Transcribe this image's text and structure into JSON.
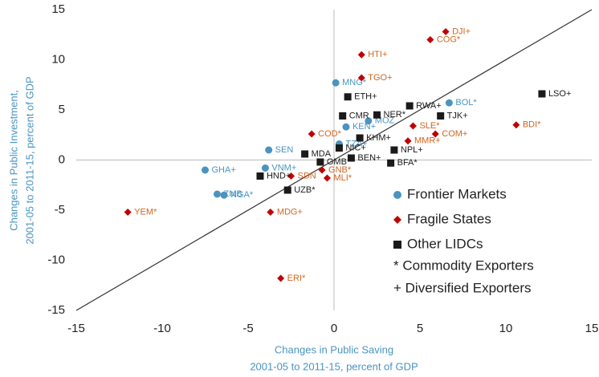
{
  "chart_data": {
    "type": "scatter",
    "xlabel": [
      "Changes in Public Saving",
      "2001-05 to 2011-15, percent of GDP"
    ],
    "ylabel": [
      "Changes in Public Investment,",
      "2001-05 to 2011-15, percent of GDP"
    ],
    "xlim": [
      -15,
      15
    ],
    "ylim": [
      -15,
      15
    ],
    "xticks": [
      -15,
      -10,
      -5,
      0,
      5,
      10,
      15
    ],
    "yticks": [
      -15,
      -10,
      -5,
      0,
      5,
      10,
      15
    ],
    "diagonal": true,
    "legend_notes": [
      "*  Commodity Exporters",
      "+  Diversified Exporters"
    ],
    "series": [
      {
        "name": "Frontier Markets",
        "marker": "circle",
        "color": "#4a94bf",
        "label_color": "#4a94bf",
        "labels": [
          "MNG*",
          "BOL*",
          "GHA+",
          "SEN",
          "VNM+",
          "ZMB",
          "NGA*",
          "MOZ",
          "KEN+",
          "TZA+"
        ],
        "x": [
          0.1,
          6.7,
          -7.5,
          -3.8,
          -4.0,
          -6.8,
          -6.4,
          2.0,
          0.7,
          0.3
        ],
        "y": [
          7.7,
          5.7,
          -1.0,
          1.0,
          -0.8,
          -3.4,
          -3.5,
          3.9,
          3.3,
          1.6
        ]
      },
      {
        "name": "Fragile States",
        "marker": "diamond",
        "color": "#c00000",
        "label_color": "#d0661e",
        "labels": [
          "DJI+",
          "COG*",
          "HTI+",
          "TGO+",
          "SLE*",
          "COM+",
          "MMR+",
          "BDI*",
          "COD*",
          "SDN",
          "MLI*",
          "GNB*",
          "YEM*",
          "MDG+",
          "ERI*"
        ],
        "x": [
          6.5,
          5.6,
          1.6,
          1.6,
          4.6,
          5.9,
          4.3,
          10.6,
          -1.3,
          -2.5,
          -0.4,
          -0.7,
          -12.0,
          -3.7,
          -3.1
        ],
        "y": [
          12.8,
          12.0,
          10.5,
          8.2,
          3.4,
          2.6,
          1.9,
          3.5,
          2.6,
          -1.6,
          -1.8,
          -1.0,
          -5.2,
          -5.2,
          -11.8
        ]
      },
      {
        "name": "Other LIDCs",
        "marker": "square",
        "color": "#1a1a1a",
        "label_color": "#1a1a1a",
        "labels": [
          "LSO+",
          "ETH+",
          "RWA+",
          "TJK+",
          "CMR",
          "NER*",
          "KHM+",
          "NIC+",
          "NPL+",
          "MDA",
          "GMB",
          "BEN+",
          "BFA*",
          "HND+",
          "UZB*"
        ],
        "x": [
          12.1,
          0.8,
          4.4,
          6.2,
          0.5,
          2.5,
          1.5,
          0.3,
          3.5,
          -1.7,
          -0.8,
          1.0,
          3.3,
          -4.3,
          -2.7
        ],
        "y": [
          6.6,
          6.3,
          5.4,
          4.4,
          4.4,
          4.5,
          2.2,
          1.2,
          1.0,
          0.6,
          -0.2,
          0.2,
          -0.3,
          -1.6,
          -3.0
        ]
      }
    ]
  }
}
